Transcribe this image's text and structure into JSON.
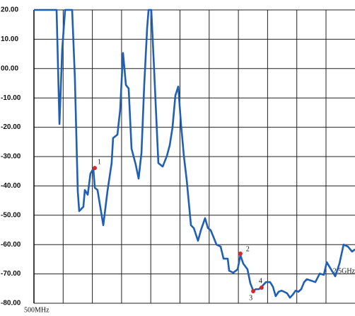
{
  "chart_data": {
    "type": "line",
    "xlim": [
      500,
      2500
    ],
    "xticks": [
      {
        "value": 500,
        "label": "500MHz"
      },
      {
        "value": 2500,
        "label": "2.5GHz"
      }
    ],
    "ylim": [
      -80,
      20
    ],
    "yticks": [
      {
        "value": 20,
        "label": "20.00"
      },
      {
        "value": 10,
        "label": "10.00"
      },
      {
        "value": 0,
        "label": "00.00"
      },
      {
        "value": -10,
        "label": "-10.00"
      },
      {
        "value": -20,
        "label": "-20.00"
      },
      {
        "value": -30,
        "label": "-30.00"
      },
      {
        "value": -40,
        "label": "-40.00"
      },
      {
        "value": -50,
        "label": "-50.00"
      },
      {
        "value": -60,
        "label": "-60.00"
      },
      {
        "value": -70,
        "label": "-70.00"
      },
      {
        "value": -80,
        "label": "-80.00"
      }
    ],
    "grid": true,
    "x": [
      500,
      641,
      659,
      676,
      694,
      738,
      755,
      773,
      782,
      808,
      817,
      835,
      852,
      870,
      879,
      896,
      932,
      958,
      984,
      993,
      1020,
      1037,
      1055,
      1073,
      1090,
      1108,
      1134,
      1152,
      1170,
      1187,
      1205,
      1214,
      1231,
      1249,
      1275,
      1302,
      1328,
      1346,
      1363,
      1381,
      1399,
      1416,
      1434,
      1452,
      1478,
      1496,
      1522,
      1540,
      1566,
      1584,
      1601,
      1619,
      1637,
      1663,
      1681,
      1707,
      1716,
      1742,
      1769,
      1786,
      1804,
      1830,
      1848,
      1866,
      1883,
      1901,
      1918,
      1945,
      1971,
      1989,
      2006,
      2024,
      2042,
      2059,
      2077,
      2095,
      2112,
      2130,
      2147,
      2165,
      2183,
      2200,
      2227,
      2253,
      2280,
      2306,
      2324,
      2350,
      2377,
      2403,
      2429,
      2456,
      2482,
      2500
    ],
    "series": [
      {
        "color": "#1f5fb4",
        "values": [
          20,
          20,
          -18.9,
          6.5,
          20,
          20,
          -3.2,
          -41.8,
          -48.6,
          -47.1,
          -41.4,
          -43,
          -35.8,
          -34.1,
          -40.6,
          -41.4,
          -53.4,
          -41.8,
          -32.2,
          -23.7,
          -22.5,
          -14.1,
          5.3,
          -5.6,
          -6.8,
          -27.3,
          -32.7,
          -37.5,
          -28.6,
          -5.6,
          13.7,
          20,
          20,
          -0.8,
          -32.2,
          -33.4,
          -29.8,
          -26.1,
          -20.1,
          -9.2,
          -6.1,
          -18.9,
          -29.8,
          -38.2,
          -53.4,
          -54.4,
          -58.7,
          -55.1,
          -51,
          -54.4,
          -55.1,
          -57.5,
          -60,
          -60.7,
          -64.8,
          -64.8,
          -68.9,
          -69.6,
          -68.4,
          -63.6,
          -66.5,
          -68.4,
          -73.2,
          -75.7,
          -75.2,
          -75.2,
          -74.4,
          -72.8,
          -72.8,
          -74.4,
          -77.6,
          -76.1,
          -75.7,
          -76.1,
          -76.6,
          -78.1,
          -77.1,
          -75.7,
          -76.1,
          -75.2,
          -72.8,
          -71.8,
          -72.3,
          -72.8,
          -69.9,
          -70.3,
          -66,
          -68.4,
          -70.8,
          -66.5,
          -60,
          -60.7,
          -62.4,
          -61.6
        ]
      }
    ],
    "markers": [
      {
        "label": "1",
        "x": 879,
        "y": -33.9
      },
      {
        "label": "2",
        "x": 1786,
        "y": -63.1
      },
      {
        "label": "3",
        "x": 1866,
        "y": -75.9
      },
      {
        "label": "4",
        "x": 1918,
        "y": -74.7
      }
    ],
    "marker_color": "#d42a2a"
  }
}
